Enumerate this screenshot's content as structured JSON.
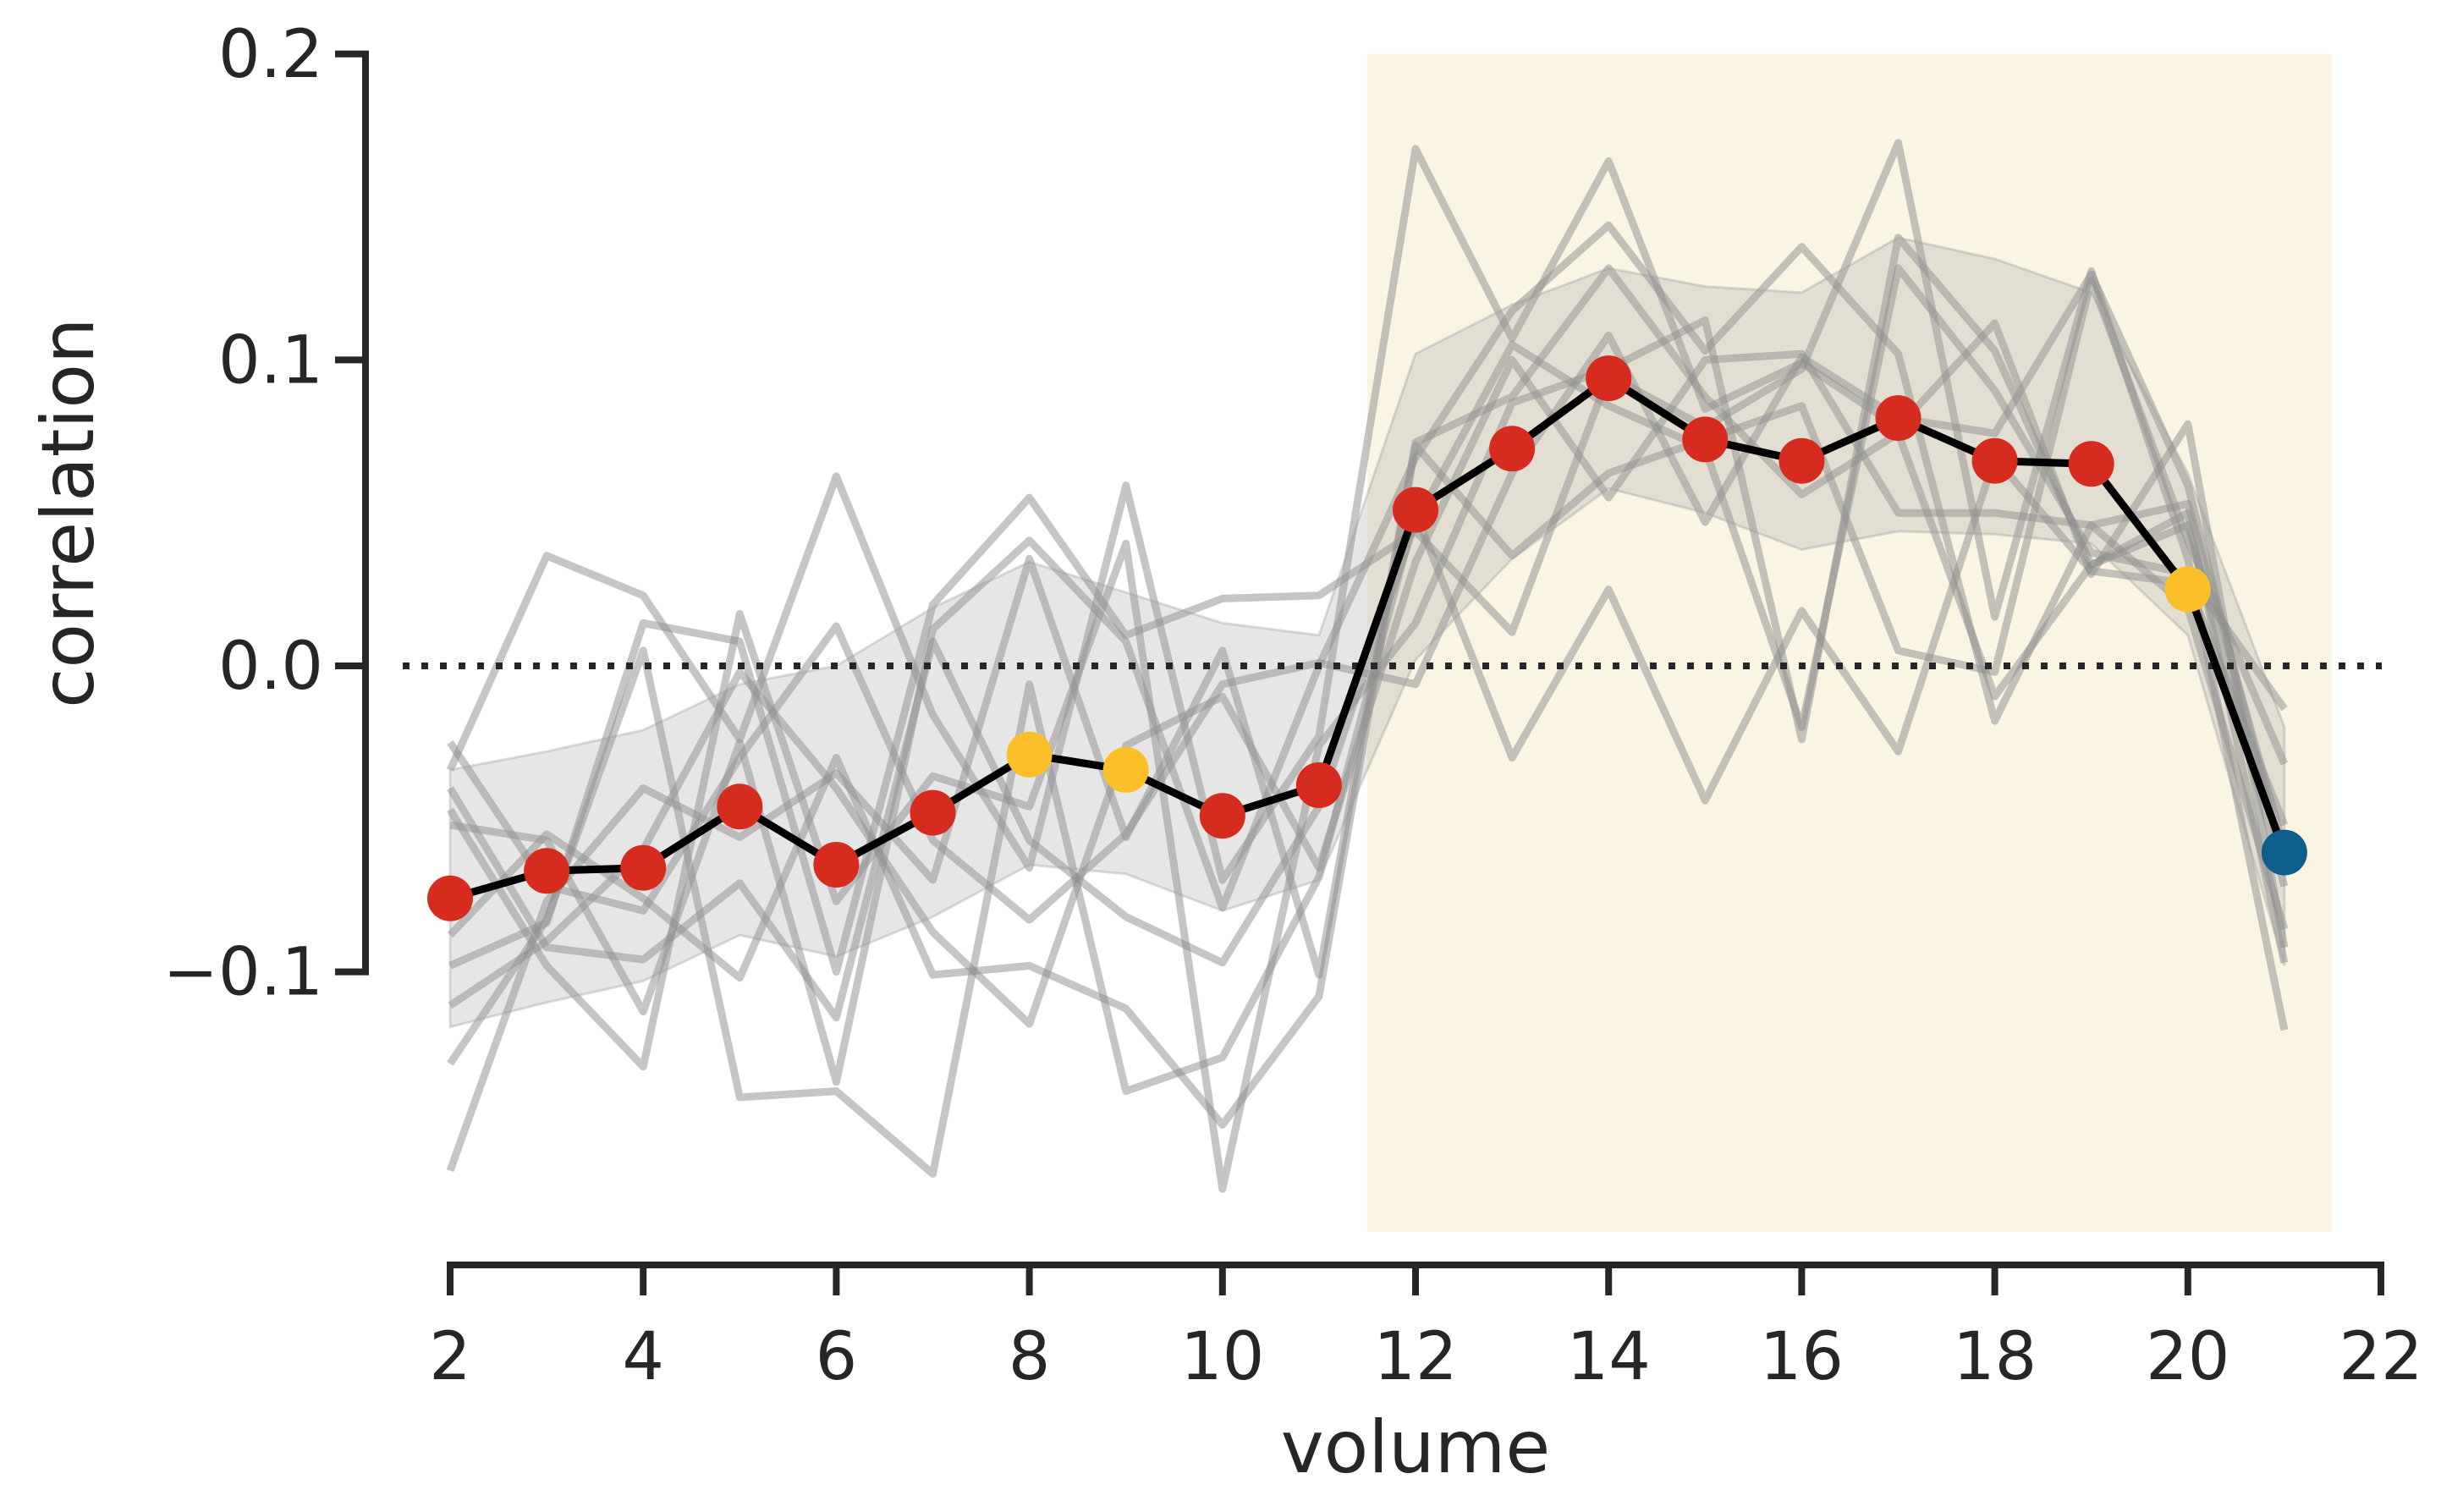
{
  "chart_data": {
    "type": "line",
    "xlabel": "volume",
    "ylabel": "correlation",
    "xlim": [
      2,
      22
    ],
    "ylim": [
      -0.185,
      0.2
    ],
    "x_ticks": [
      2,
      4,
      6,
      8,
      10,
      12,
      14,
      16,
      18,
      20,
      22
    ],
    "x_tick_labels": [
      "2",
      "4",
      "6",
      "8",
      "10",
      "12",
      "14",
      "16",
      "18",
      "20",
      "22"
    ],
    "y_ticks": [
      -0.1,
      0.0,
      0.1,
      0.2
    ],
    "y_tick_labels": [
      "−0.1",
      "0.0",
      "0.1",
      "0.2"
    ],
    "reference_line": {
      "y": 0.0,
      "style": "dotted"
    },
    "highlight_span": {
      "x_start": 11.5,
      "x_end": 21.5,
      "color": "#faf5e3"
    },
    "grid": false,
    "mean_series": {
      "x": [
        2,
        3,
        4,
        5,
        6,
        7,
        8,
        9,
        10,
        11,
        12,
        13,
        14,
        15,
        16,
        17,
        18,
        19,
        20,
        21
      ],
      "values": [
        -0.076,
        -0.067,
        -0.066,
        -0.046,
        -0.065,
        -0.048,
        -0.029,
        -0.034,
        -0.049,
        -0.039,
        0.051,
        0.071,
        0.094,
        0.074,
        0.067,
        0.081,
        0.067,
        0.066,
        0.025,
        -0.061
      ],
      "point_colors": [
        "#d62c1f",
        "#d62c1f",
        "#d62c1f",
        "#d62c1f",
        "#d62c1f",
        "#d62c1f",
        "#fbbf2a",
        "#fbbf2a",
        "#d62c1f",
        "#d62c1f",
        "#d62c1f",
        "#d62c1f",
        "#d62c1f",
        "#d62c1f",
        "#d62c1f",
        "#d62c1f",
        "#d62c1f",
        "#d62c1f",
        "#fbbf2a",
        "#0d5f8a"
      ]
    },
    "confidence_band": {
      "x": [
        2,
        3,
        4,
        5,
        6,
        7,
        8,
        9,
        10,
        11,
        12,
        13,
        14,
        15,
        16,
        17,
        18,
        19,
        20,
        21
      ],
      "lower": [
        -0.118,
        -0.11,
        -0.103,
        -0.088,
        -0.095,
        -0.082,
        -0.065,
        -0.068,
        -0.08,
        -0.07,
        0.002,
        0.035,
        0.058,
        0.05,
        0.038,
        0.044,
        0.043,
        0.04,
        0.01,
        -0.098
      ],
      "upper": [
        -0.034,
        -0.028,
        -0.021,
        -0.006,
        0.0,
        0.019,
        0.034,
        0.024,
        0.014,
        0.01,
        0.102,
        0.118,
        0.13,
        0.124,
        0.122,
        0.14,
        0.133,
        0.122,
        0.063,
        -0.02
      ]
    },
    "subject_series": [
      {
        "values": [
          -0.034,
          0.036,
          0.023,
          -0.024,
          0.062,
          -0.016,
          -0.066,
          0.059,
          -0.07,
          -0.023,
          0.169,
          0.107,
          0.165,
          0.084,
          0.099,
          0.078,
          0.112,
          0.03,
          0.079,
          -0.092
        ]
      },
      {
        "values": [
          -0.098,
          -0.084,
          0.014,
          0.008,
          -0.1,
          0.02,
          0.055,
          0.01,
          0.022,
          0.023,
          0.044,
          0.011,
          0.095,
          0.078,
          0.097,
          0.171,
          0.016,
          0.129,
          0.035,
          -0.119
        ]
      },
      {
        "values": [
          -0.052,
          -0.057,
          -0.113,
          -0.025,
          -0.136,
          0.012,
          0.041,
          0.008,
          -0.079,
          0.0,
          0.068,
          0.116,
          0.144,
          0.103,
          0.137,
          0.102,
          -0.018,
          0.046,
          0.053,
          -0.06
        ]
      },
      {
        "values": [
          -0.13,
          -0.083,
          0.005,
          -0.141,
          -0.139,
          -0.166,
          -0.006,
          -0.139,
          -0.128,
          -0.069,
          0.05,
          -0.03,
          0.025,
          -0.044,
          0.018,
          -0.028,
          0.068,
          0.031,
          0.027,
          -0.052
        ]
      },
      {
        "values": [
          -0.165,
          -0.077,
          -0.04,
          -0.056,
          -0.035,
          -0.07,
          0.035,
          -0.056,
          0.005,
          -0.101,
          0.073,
          0.088,
          0.13,
          0.088,
          0.056,
          0.076,
          -0.01,
          0.033,
          0.05,
          -0.097
        ]
      },
      {
        "values": [
          -0.047,
          -0.098,
          -0.131,
          0.017,
          -0.077,
          -0.036,
          -0.046,
          0.04,
          -0.171,
          -0.026,
          0.014,
          0.086,
          0.097,
          0.113,
          -0.024,
          0.14,
          0.103,
          0.033,
          0.046,
          -0.072
        ]
      },
      {
        "values": [
          -0.088,
          -0.055,
          -0.076,
          -0.102,
          -0.03,
          -0.101,
          -0.098,
          -0.112,
          -0.15,
          -0.108,
          0.072,
          0.036,
          0.063,
          0.074,
          0.085,
          0.005,
          -0.002,
          0.126,
          0.041,
          -0.032
        ]
      },
      {
        "values": [
          -0.025,
          -0.072,
          -0.08,
          -0.03,
          0.013,
          -0.057,
          -0.083,
          -0.055,
          -0.006,
          0.001,
          -0.006,
          0.063,
          0.108,
          0.047,
          0.101,
          0.081,
          0.076,
          0.128,
          0.059,
          -0.066
        ]
      },
      {
        "values": [
          -0.111,
          -0.09,
          -0.06,
          -0.002,
          -0.04,
          -0.087,
          -0.117,
          -0.026,
          -0.01,
          -0.066,
          0.034,
          0.1,
          0.055,
          0.1,
          0.102,
          0.05,
          0.05,
          0.046,
          0.019,
          -0.086
        ]
      },
      {
        "values": [
          -0.04,
          -0.092,
          -0.096,
          -0.071,
          -0.115,
          0.008,
          -0.057,
          -0.082,
          -0.097,
          -0.046,
          0.047,
          0.105,
          0.085,
          0.071,
          -0.02,
          0.13,
          0.09,
          0.037,
          0.03,
          -0.014
        ]
      }
    ]
  }
}
